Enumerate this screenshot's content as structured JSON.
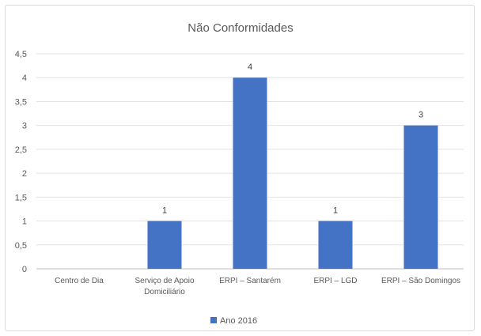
{
  "chart_data": {
    "type": "bar",
    "title": "Não Conformidades",
    "categories": [
      [
        "Centro de Dia"
      ],
      [
        "Serviço de Apoio",
        "Domiciliário"
      ],
      [
        "ERPI – Santarém"
      ],
      [
        "ERPI – LGD"
      ],
      [
        "ERPI – São Domingos"
      ]
    ],
    "series": [
      {
        "name": "Ano 2016",
        "values": [
          0,
          1,
          4,
          1,
          3
        ],
        "color": "#4472c4"
      }
    ],
    "data_labels": [
      "",
      "1",
      "4",
      "1",
      "3"
    ],
    "y_ticks": [
      "0",
      "0,5",
      "1",
      "1,5",
      "2",
      "2,5",
      "3",
      "3,5",
      "4",
      "4,5"
    ],
    "ylim": [
      0,
      4.5
    ],
    "grid": true,
    "legend_position": "bottom",
    "xlabel": "",
    "ylabel": ""
  }
}
